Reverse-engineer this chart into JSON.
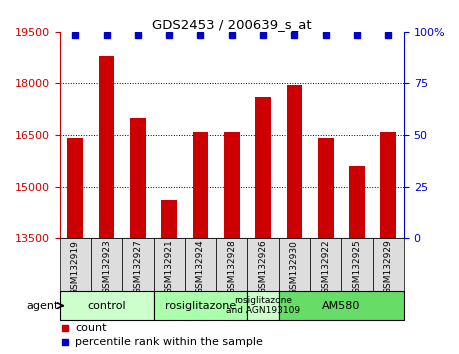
{
  "title": "GDS2453 / 200639_s_at",
  "samples": [
    "GSM132919",
    "GSM132923",
    "GSM132927",
    "GSM132921",
    "GSM132924",
    "GSM132928",
    "GSM132926",
    "GSM132930",
    "GSM132922",
    "GSM132925",
    "GSM132929"
  ],
  "counts": [
    16400,
    18800,
    17000,
    14600,
    16600,
    16600,
    17600,
    17950,
    16400,
    15600,
    16600
  ],
  "percentile_ranks": [
    100,
    100,
    100,
    100,
    100,
    100,
    100,
    100,
    100,
    100,
    100
  ],
  "ylim": [
    13500,
    19500
  ],
  "y_ticks": [
    13500,
    15000,
    16500,
    18000,
    19500
  ],
  "y_ticks_right": [
    0,
    25,
    50,
    75,
    100
  ],
  "bar_color": "#cc0000",
  "dot_color": "#0000cc",
  "groups": [
    {
      "label": "control",
      "start": 0,
      "end": 3,
      "color": "#ccffcc"
    },
    {
      "label": "rosiglitazone",
      "start": 3,
      "end": 6,
      "color": "#aaffaa"
    },
    {
      "label": "rosiglitazone\nand AGN193109",
      "start": 6,
      "end": 7,
      "color": "#ccffcc"
    },
    {
      "label": "AM580",
      "start": 7,
      "end": 11,
      "color": "#66dd66"
    }
  ],
  "bar_width": 0.5,
  "tick_label_color_left": "#cc0000",
  "tick_label_color_right": "#0000cc",
  "sample_cell_color": "#dddddd"
}
